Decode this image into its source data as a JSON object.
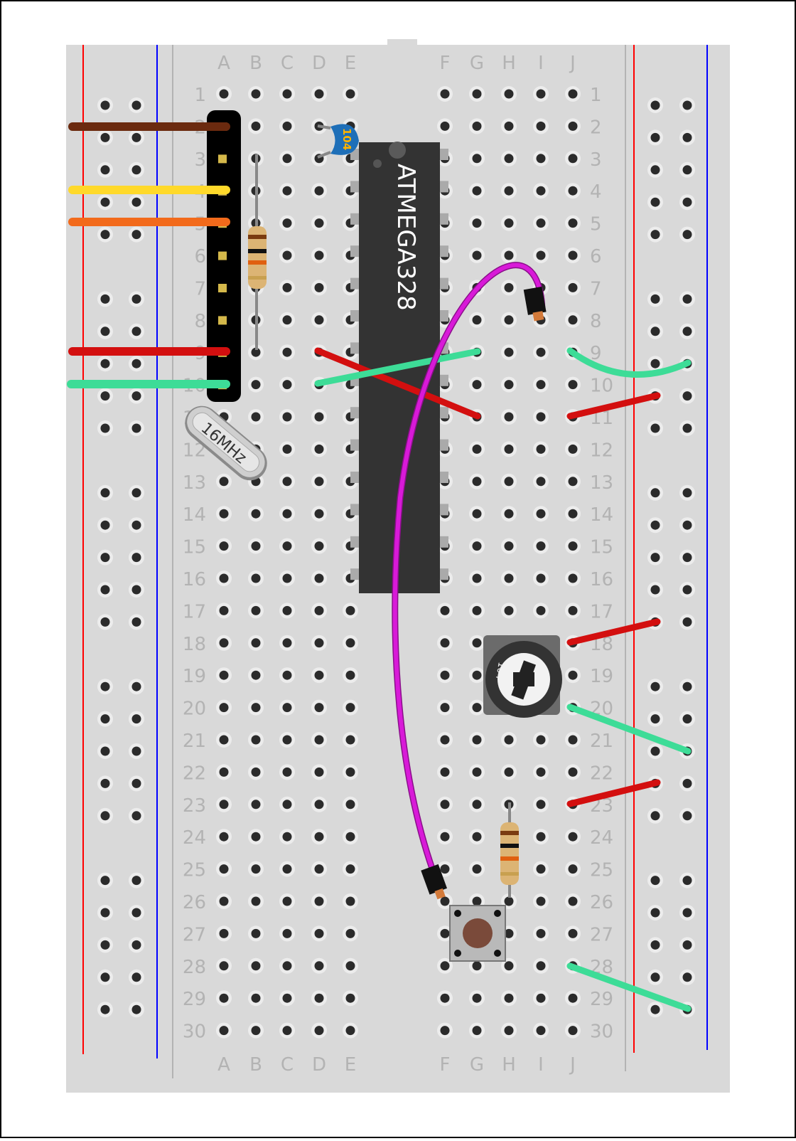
{
  "breadboard": {
    "columns_left": [
      "A",
      "B",
      "C",
      "D",
      "E"
    ],
    "columns_right": [
      "F",
      "G",
      "H",
      "I",
      "J"
    ],
    "rows": [
      "1",
      "2",
      "3",
      "4",
      "5",
      "6",
      "7",
      "8",
      "9",
      "10",
      "11",
      "12",
      "13",
      "14",
      "15",
      "16",
      "17",
      "18",
      "19",
      "20",
      "21",
      "22",
      "23",
      "24",
      "25",
      "26",
      "27",
      "28",
      "29",
      "30"
    ],
    "colors": {
      "board": "#d9d9d9",
      "label": "#b3b3b3",
      "rail_positive": "#ff0000",
      "rail_negative": "#0000ff"
    }
  },
  "chip": {
    "label": "ATMEGA328",
    "color": "#333333"
  },
  "capacitor": {
    "label": "104",
    "color": "#1e6fb8"
  },
  "crystal": {
    "label": "16MHz"
  },
  "trimmer": {
    "label": "104"
  },
  "wires": {
    "colors": {
      "brown": "#6b2a0f",
      "yellow": "#ffd92a",
      "orange": "#f26a1b",
      "red": "#d30f0f",
      "green": "#3ddc97",
      "magenta": "#d81ad8"
    }
  },
  "pushbutton": {
    "color": "#7a4a3a"
  }
}
